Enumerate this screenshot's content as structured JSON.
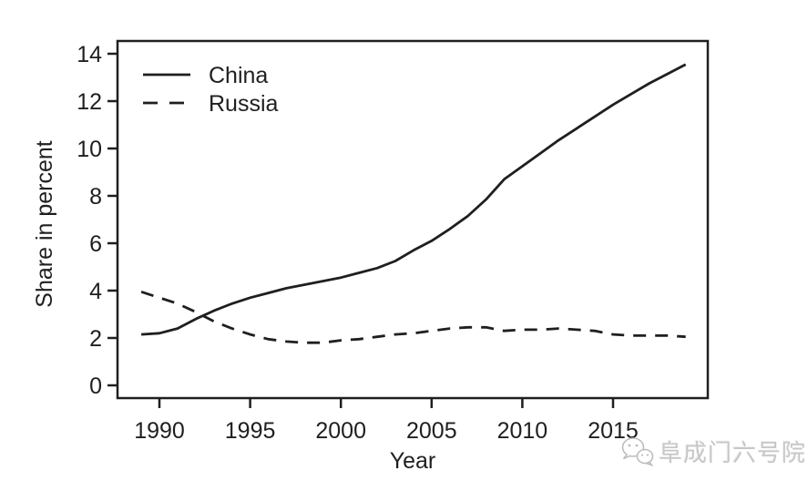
{
  "chart_data": {
    "type": "line",
    "title": "",
    "xlabel": "Year",
    "ylabel": "Share in percent",
    "ylim": [
      0,
      14
    ],
    "yticks": [
      0,
      2,
      4,
      6,
      8,
      10,
      12,
      14
    ],
    "xticks": [
      1990,
      1995,
      2000,
      2005,
      2010,
      2015
    ],
    "x_range": [
      1989,
      2019
    ],
    "grid": false,
    "legend_position": "top-left-inside",
    "x": [
      1989,
      1990,
      1991,
      1992,
      1993,
      1994,
      1995,
      1996,
      1997,
      1998,
      1999,
      2000,
      2001,
      2002,
      2003,
      2004,
      2005,
      2006,
      2007,
      2008,
      2009,
      2010,
      2011,
      2012,
      2013,
      2014,
      2015,
      2016,
      2017,
      2018,
      2019
    ],
    "series": [
      {
        "name": "China",
        "line_style": "solid",
        "color": "#1f1f1f",
        "values": [
          2.15,
          2.2,
          2.4,
          2.8,
          3.15,
          3.45,
          3.7,
          3.9,
          4.1,
          4.25,
          4.4,
          4.55,
          4.75,
          4.95,
          5.25,
          5.7,
          6.1,
          6.6,
          7.15,
          7.85,
          8.7,
          9.25,
          9.8,
          10.35,
          10.85,
          11.35,
          11.85,
          12.3,
          12.75,
          13.15,
          13.55
        ]
      },
      {
        "name": "Russia",
        "line_style": "dashed",
        "color": "#1f1f1f",
        "values": [
          3.95,
          3.7,
          3.45,
          3.1,
          2.7,
          2.4,
          2.15,
          1.95,
          1.85,
          1.8,
          1.8,
          1.9,
          1.95,
          2.05,
          2.15,
          2.2,
          2.3,
          2.4,
          2.45,
          2.45,
          2.3,
          2.35,
          2.35,
          2.4,
          2.35,
          2.3,
          2.15,
          2.1,
          2.1,
          2.1,
          2.05
        ]
      }
    ]
  },
  "legend": {
    "items": [
      {
        "label": "China",
        "line_style": "solid"
      },
      {
        "label": "Russia",
        "line_style": "dashed"
      }
    ]
  },
  "watermark": {
    "icon": "wechat-icon",
    "text": "阜成门六号院",
    "color": "#c7c7c7"
  },
  "colors": {
    "line": "#1f1f1f",
    "axis": "#1f1f1f",
    "text": "#1f1f1f",
    "background": "#ffffff"
  }
}
